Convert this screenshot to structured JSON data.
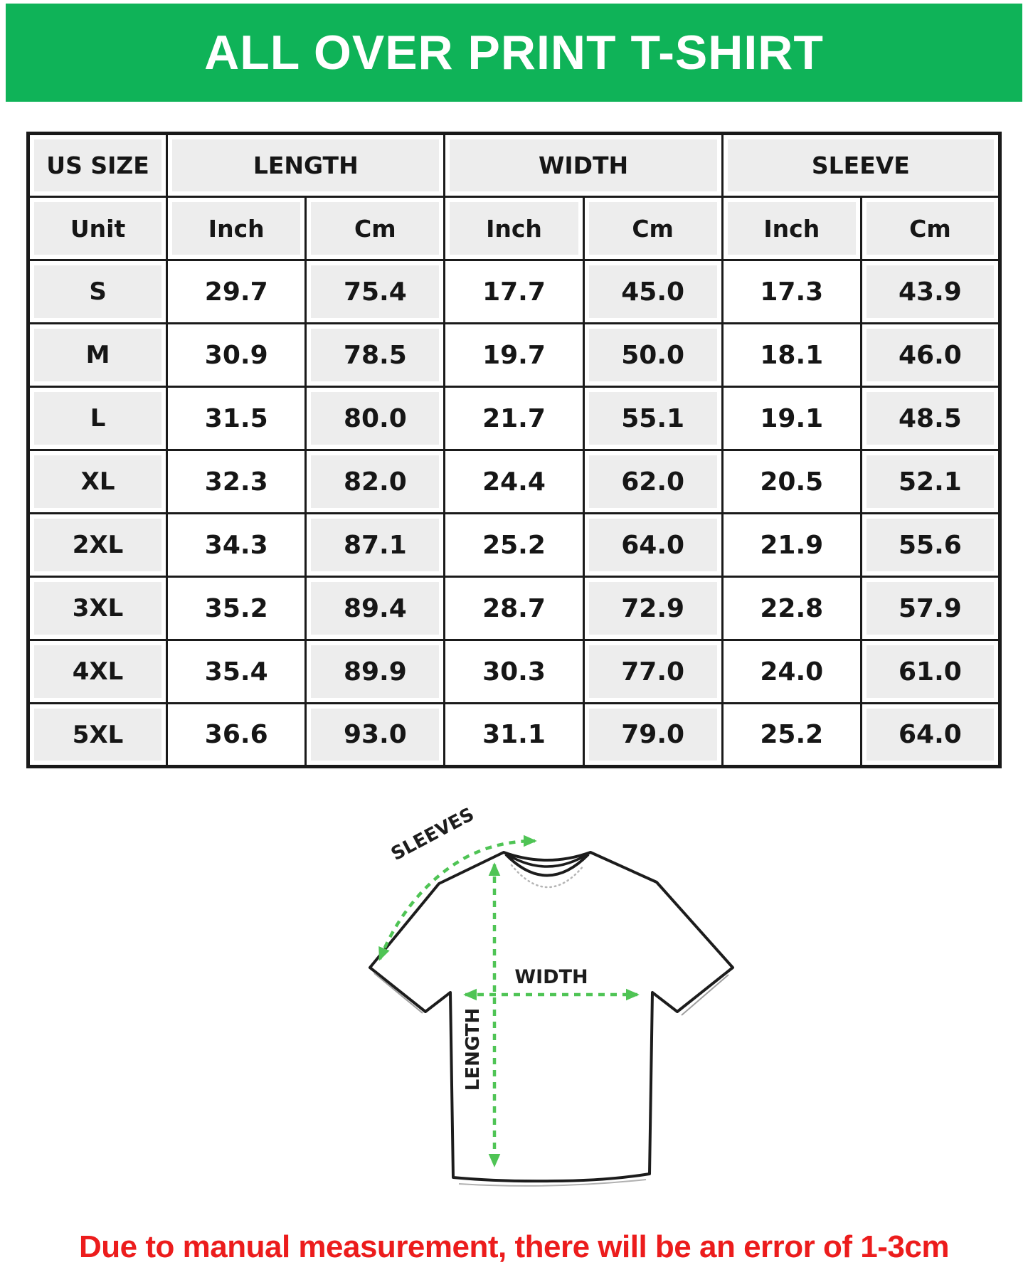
{
  "banner": {
    "title": "ALL OVER PRINT T-SHIRT"
  },
  "table": {
    "groups": [
      {
        "label": "US SIZE",
        "span": 1
      },
      {
        "label": "LENGTH",
        "span": 2
      },
      {
        "label": "WIDTH",
        "span": 2
      },
      {
        "label": "SLEEVE",
        "span": 2
      }
    ],
    "unit_row": [
      "Unit",
      "Inch",
      "Cm",
      "Inch",
      "Cm",
      "Inch",
      "Cm"
    ],
    "rows": [
      {
        "size": "S",
        "values": [
          "29.7",
          "75.4",
          "17.7",
          "45.0",
          "17.3",
          "43.9"
        ]
      },
      {
        "size": "M",
        "values": [
          "30.9",
          "78.5",
          "19.7",
          "50.0",
          "18.1",
          "46.0"
        ]
      },
      {
        "size": "L",
        "values": [
          "31.5",
          "80.0",
          "21.7",
          "55.1",
          "19.1",
          "48.5"
        ]
      },
      {
        "size": "XL",
        "values": [
          "32.3",
          "82.0",
          "24.4",
          "62.0",
          "20.5",
          "52.1"
        ]
      },
      {
        "size": "2XL",
        "values": [
          "34.3",
          "87.1",
          "25.2",
          "64.0",
          "21.9",
          "55.6"
        ]
      },
      {
        "size": "3XL",
        "values": [
          "35.2",
          "89.4",
          "28.7",
          "72.9",
          "22.8",
          "57.9"
        ]
      },
      {
        "size": "4XL",
        "values": [
          "35.4",
          "89.9",
          "30.3",
          "77.0",
          "24.0",
          "61.0"
        ]
      },
      {
        "size": "5XL",
        "values": [
          "36.6",
          "93.0",
          "31.1",
          "79.0",
          "25.2",
          "64.0"
        ]
      }
    ]
  },
  "diagram": {
    "sleeves_label": "SLEEVES",
    "width_label": "WIDTH",
    "length_label": "LENGTH"
  },
  "footnote": {
    "text": "Due to manual measurement, there will be an error of 1-3cm"
  },
  "colors": {
    "banner_green": "#0fb358",
    "arrow_green": "#4fc455",
    "note_red": "#ec1c1c",
    "cell_shade": "#ededed",
    "border_black": "#1a1a1a"
  }
}
